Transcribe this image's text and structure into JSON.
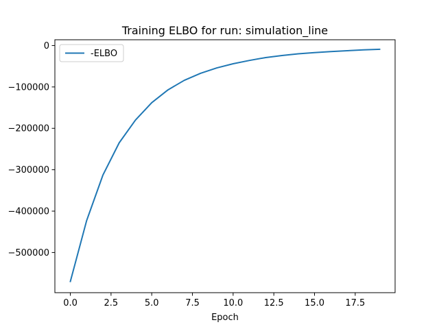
{
  "chart_data": {
    "type": "line",
    "title": "Training ELBO for run: simulation_line",
    "xlabel": "Epoch",
    "ylabel": "",
    "xlim": [
      -0.95,
      19.95
    ],
    "ylim": [
      -597000,
      14000
    ],
    "x_ticks": [
      0,
      2.5,
      5,
      7.5,
      10,
      12.5,
      15,
      17.5
    ],
    "x_tick_labels": [
      "0.0",
      "2.5",
      "5.0",
      "7.5",
      "10.0",
      "12.5",
      "15.0",
      "17.5"
    ],
    "y_ticks": [
      0,
      -100000,
      -200000,
      -300000,
      -400000,
      -500000
    ],
    "y_tick_labels": [
      "0",
      "−100000",
      "−200000",
      "−300000",
      "−400000",
      "−500000"
    ],
    "legend_position": "upper-left",
    "grid": false,
    "series": [
      {
        "name": "-ELBO",
        "color": "#1f77b4",
        "x": [
          0,
          1,
          2,
          3,
          4,
          5,
          6,
          7,
          8,
          9,
          10,
          11,
          12,
          13,
          14,
          15,
          16,
          17,
          18,
          19
        ],
        "values": [
          -570000,
          -423000,
          -313000,
          -235000,
          -180000,
          -138000,
          -107000,
          -84000,
          -67000,
          -54000,
          -44000,
          -36000,
          -29000,
          -24000,
          -20000,
          -17000,
          -14500,
          -12500,
          -10500,
          -9000
        ]
      }
    ]
  }
}
